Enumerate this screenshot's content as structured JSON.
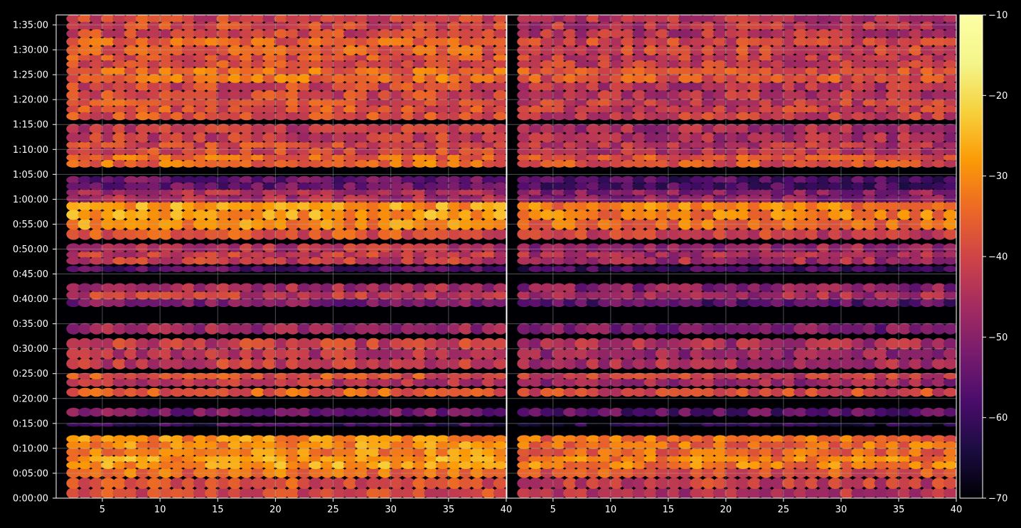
{
  "chart_data": {
    "type": "heatmap",
    "title": "",
    "panels": [
      {
        "xlim": [
          1,
          40
        ],
        "x_ticks": [
          "5",
          "10",
          "15",
          "20",
          "25",
          "30",
          "35",
          "40"
        ]
      },
      {
        "xlim": [
          1,
          40
        ],
        "x_ticks": [
          "5",
          "10",
          "15",
          "20",
          "25",
          "30",
          "35",
          "40"
        ]
      }
    ],
    "y_ticks": [
      "0:00:00",
      "0:05:00",
      "0:10:00",
      "0:15:00",
      "0:20:00",
      "0:25:00",
      "0:30:00",
      "0:35:00",
      "0:40:00",
      "0:45:00",
      "0:50:00",
      "0:55:00",
      "1:00:00",
      "1:05:00",
      "1:10:00",
      "1:15:00",
      "1:20:00",
      "1:25:00",
      "1:30:00",
      "1:35:00"
    ],
    "ylim_seconds": [
      0,
      5820
    ],
    "grid": true,
    "colorbar": {
      "cmap": "inferno",
      "range": [
        -70,
        -10
      ],
      "ticks": [
        "−10",
        "−20",
        "−30",
        "−40",
        "−50",
        "−60",
        "−70"
      ]
    },
    "row_bands_minutes": [
      {
        "start": 0.0,
        "end": 2.0,
        "level": -40
      },
      {
        "start": 2.0,
        "end": 4.0,
        "level": -38
      },
      {
        "start": 4.2,
        "end": 6.0,
        "level": -34
      },
      {
        "start": 6.0,
        "end": 8.5,
        "level": -28
      },
      {
        "start": 8.5,
        "end": 10.0,
        "level": -31
      },
      {
        "start": 10.0,
        "end": 12.5,
        "level": -30
      },
      {
        "start": 14.5,
        "end": 15.0,
        "level": -60
      },
      {
        "start": 16.5,
        "end": 18.0,
        "level": -52
      },
      {
        "start": 20.5,
        "end": 22.0,
        "level": -36
      },
      {
        "start": 22.5,
        "end": 24.0,
        "level": -44
      },
      {
        "start": 24.0,
        "end": 25.0,
        "level": -38
      },
      {
        "start": 26.0,
        "end": 28.0,
        "level": -42
      },
      {
        "start": 28.0,
        "end": 30.0,
        "level": -44
      },
      {
        "start": 30.0,
        "end": 32.0,
        "level": -42
      },
      {
        "start": 33.0,
        "end": 35.0,
        "level": -48
      },
      {
        "start": 38.5,
        "end": 40.0,
        "level": -52
      },
      {
        "start": 40.0,
        "end": 41.5,
        "level": -42
      },
      {
        "start": 41.5,
        "end": 43.0,
        "level": -46
      },
      {
        "start": 45.5,
        "end": 46.5,
        "level": -56
      },
      {
        "start": 47.0,
        "end": 49.5,
        "level": -42
      },
      {
        "start": 49.5,
        "end": 51.0,
        "level": -44
      },
      {
        "start": 52.0,
        "end": 54.0,
        "level": -38
      },
      {
        "start": 54.0,
        "end": 56.0,
        "level": -30
      },
      {
        "start": 56.0,
        "end": 59.5,
        "level": -28
      },
      {
        "start": 59.5,
        "end": 62.0,
        "level": -46
      },
      {
        "start": 62.0,
        "end": 64.5,
        "level": -54
      },
      {
        "start": 66.5,
        "end": 69.0,
        "level": -34
      },
      {
        "start": 69.0,
        "end": 71.5,
        "level": -40
      },
      {
        "start": 71.5,
        "end": 75.0,
        "level": -42
      },
      {
        "start": 76.0,
        "end": 80.0,
        "level": -38
      },
      {
        "start": 80.0,
        "end": 83.5,
        "level": -40
      },
      {
        "start": 83.5,
        "end": 86.5,
        "level": -34
      },
      {
        "start": 86.5,
        "end": 89.0,
        "level": -38
      },
      {
        "start": 89.0,
        "end": 92.5,
        "level": -36
      },
      {
        "start": 92.5,
        "end": 97.0,
        "level": -40
      }
    ]
  }
}
